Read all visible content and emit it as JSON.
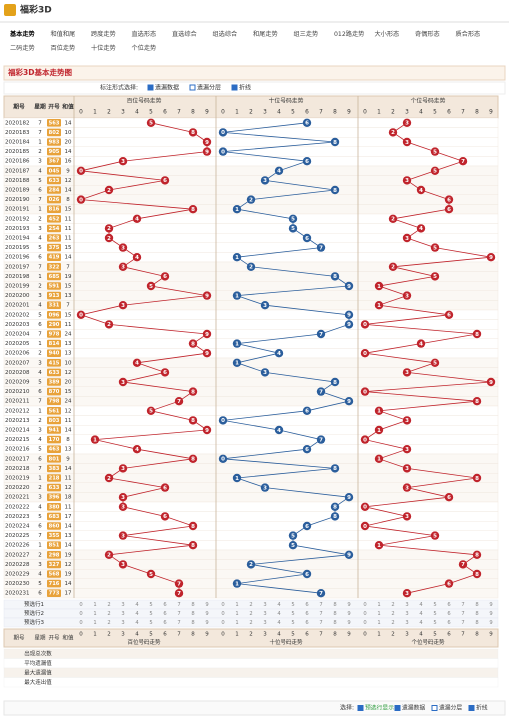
{
  "header": {
    "logo": "福彩3D",
    "nav": [
      [
        "基本走势",
        "和值和尾",
        "跨度走势",
        "直选形态",
        "直选综合",
        "组选综合",
        "和尾走势",
        "组三走势",
        "012路走势",
        "大小形态",
        "奇偶形态",
        "质合形态"
      ],
      [
        "二码走势",
        "百位走势",
        "十位走势",
        "个位走势"
      ]
    ]
  },
  "title": "福彩3D基本走势图",
  "options": {
    "label": "标注形式选择:",
    "items": [
      "遗漏数据",
      "遗漏分层",
      "折线"
    ]
  },
  "columns": [
    "期号",
    "星期",
    "开号",
    "和值"
  ],
  "groups": [
    {
      "name": "百位号码走势",
      "color": "#c0242c"
    },
    {
      "name": "十位号码走势",
      "color": "#2b5e9c"
    },
    {
      "name": "个位号码走势",
      "color": "#c0242c"
    }
  ],
  "digit_labels": [
    0,
    1,
    2,
    3,
    4,
    5,
    6,
    7,
    8,
    9
  ],
  "rows": [
    [
      "2020182",
      7,
      "563",
      14,
      [
        5,
        6,
        3
      ]
    ],
    [
      "2020183",
      7,
      "802",
      10,
      [
        8,
        0,
        2
      ]
    ],
    [
      "2020184",
      1,
      "983",
      20,
      [
        9,
        8,
        3
      ]
    ],
    [
      "2020185",
      2,
      "905",
      14,
      [
        9,
        0,
        5
      ]
    ],
    [
      "2020186",
      3,
      "367",
      16,
      [
        3,
        6,
        7
      ]
    ],
    [
      "2020187",
      4,
      "045",
      9,
      [
        0,
        4,
        5
      ]
    ],
    [
      "2020188",
      5,
      "633",
      12,
      [
        6,
        3,
        3
      ]
    ],
    [
      "2020189",
      6,
      "284",
      14,
      [
        2,
        8,
        4
      ]
    ],
    [
      "2020190",
      7,
      "026",
      8,
      [
        0,
        2,
        6
      ]
    ],
    [
      "2020191",
      1,
      "816",
      15,
      [
        8,
        1,
        6
      ]
    ],
    [
      "2020192",
      2,
      "452",
      11,
      [
        4,
        5,
        2
      ]
    ],
    [
      "2020193",
      3,
      "254",
      11,
      [
        2,
        5,
        4
      ]
    ],
    [
      "2020194",
      4,
      "263",
      11,
      [
        2,
        6,
        3
      ]
    ],
    [
      "2020195",
      5,
      "375",
      15,
      [
        3,
        7,
        5
      ]
    ],
    [
      "2020196",
      6,
      "419",
      14,
      [
        4,
        1,
        9
      ]
    ],
    [
      "2020197",
      7,
      "322",
      7,
      [
        3,
        2,
        2
      ]
    ],
    [
      "2020198",
      1,
      "685",
      19,
      [
        6,
        8,
        5
      ]
    ],
    [
      "2020199",
      2,
      "591",
      15,
      [
        5,
        9,
        1
      ]
    ],
    [
      "2020200",
      3,
      "913",
      13,
      [
        9,
        1,
        3
      ]
    ],
    [
      "2020201",
      4,
      "331",
      7,
      [
        3,
        3,
        1
      ]
    ],
    [
      "2020202",
      5,
      "096",
      15,
      [
        0,
        9,
        6
      ]
    ],
    [
      "2020203",
      6,
      "290",
      11,
      [
        2,
        9,
        0
      ]
    ],
    [
      "2020204",
      7,
      "978",
      24,
      [
        9,
        7,
        8
      ]
    ],
    [
      "2020205",
      1,
      "814",
      13,
      [
        8,
        1,
        4
      ]
    ],
    [
      "2020206",
      2,
      "940",
      13,
      [
        9,
        4,
        0
      ]
    ],
    [
      "2020207",
      3,
      "415",
      10,
      [
        4,
        1,
        5
      ]
    ],
    [
      "2020208",
      4,
      "633",
      12,
      [
        6,
        3,
        3
      ]
    ],
    [
      "2020209",
      5,
      "389",
      20,
      [
        3,
        8,
        9
      ]
    ],
    [
      "2020210",
      6,
      "870",
      15,
      [
        8,
        7,
        0
      ]
    ],
    [
      "2020211",
      7,
      "798",
      24,
      [
        7,
        9,
        8
      ]
    ],
    [
      "2020212",
      1,
      "561",
      12,
      [
        5,
        6,
        1
      ]
    ],
    [
      "2020213",
      2,
      "803",
      11,
      [
        8,
        0,
        3
      ]
    ],
    [
      "2020214",
      3,
      "941",
      14,
      [
        9,
        4,
        1
      ]
    ],
    [
      "2020215",
      4,
      "170",
      8,
      [
        1,
        7,
        0
      ]
    ],
    [
      "2020216",
      5,
      "463",
      13,
      [
        4,
        6,
        3
      ]
    ],
    [
      "2020217",
      6,
      "801",
      9,
      [
        8,
        0,
        1
      ]
    ],
    [
      "2020218",
      7,
      "383",
      14,
      [
        3,
        8,
        3
      ]
    ],
    [
      "2020219",
      1,
      "218",
      11,
      [
        2,
        1,
        8
      ]
    ],
    [
      "2020220",
      2,
      "633",
      12,
      [
        6,
        3,
        3
      ]
    ],
    [
      "2020221",
      3,
      "396",
      18,
      [
        3,
        9,
        6
      ]
    ],
    [
      "2020222",
      4,
      "380",
      11,
      [
        3,
        8,
        0
      ]
    ],
    [
      "2020223",
      5,
      "683",
      17,
      [
        6,
        8,
        3
      ]
    ],
    [
      "2020224",
      6,
      "860",
      14,
      [
        8,
        6,
        0
      ]
    ],
    [
      "2020225",
      7,
      "355",
      13,
      [
        3,
        5,
        5
      ]
    ],
    [
      "2020226",
      1,
      "851",
      14,
      [
        8,
        5,
        1
      ]
    ],
    [
      "2020227",
      2,
      "298",
      19,
      [
        2,
        9,
        8
      ]
    ],
    [
      "2020228",
      3,
      "327",
      12,
      [
        3,
        2,
        7
      ]
    ],
    [
      "2020229",
      4,
      "568",
      19,
      [
        5,
        6,
        8
      ]
    ],
    [
      "2020230",
      5,
      "716",
      14,
      [
        7,
        1,
        6
      ]
    ],
    [
      "2020231",
      6,
      "773",
      17,
      [
        7,
        7,
        3
      ]
    ]
  ],
  "footer": {
    "preselect": [
      "预选行1",
      "预选行2",
      "预选行3"
    ],
    "stats": [
      "出现总次数",
      "平均遗漏值",
      "最大遗漏值",
      "最大连出值"
    ]
  },
  "bottom_bar": {
    "label": "选择:",
    "items": [
      "预选行显示",
      "遗漏数据",
      "遗漏分层",
      "折线"
    ]
  }
}
